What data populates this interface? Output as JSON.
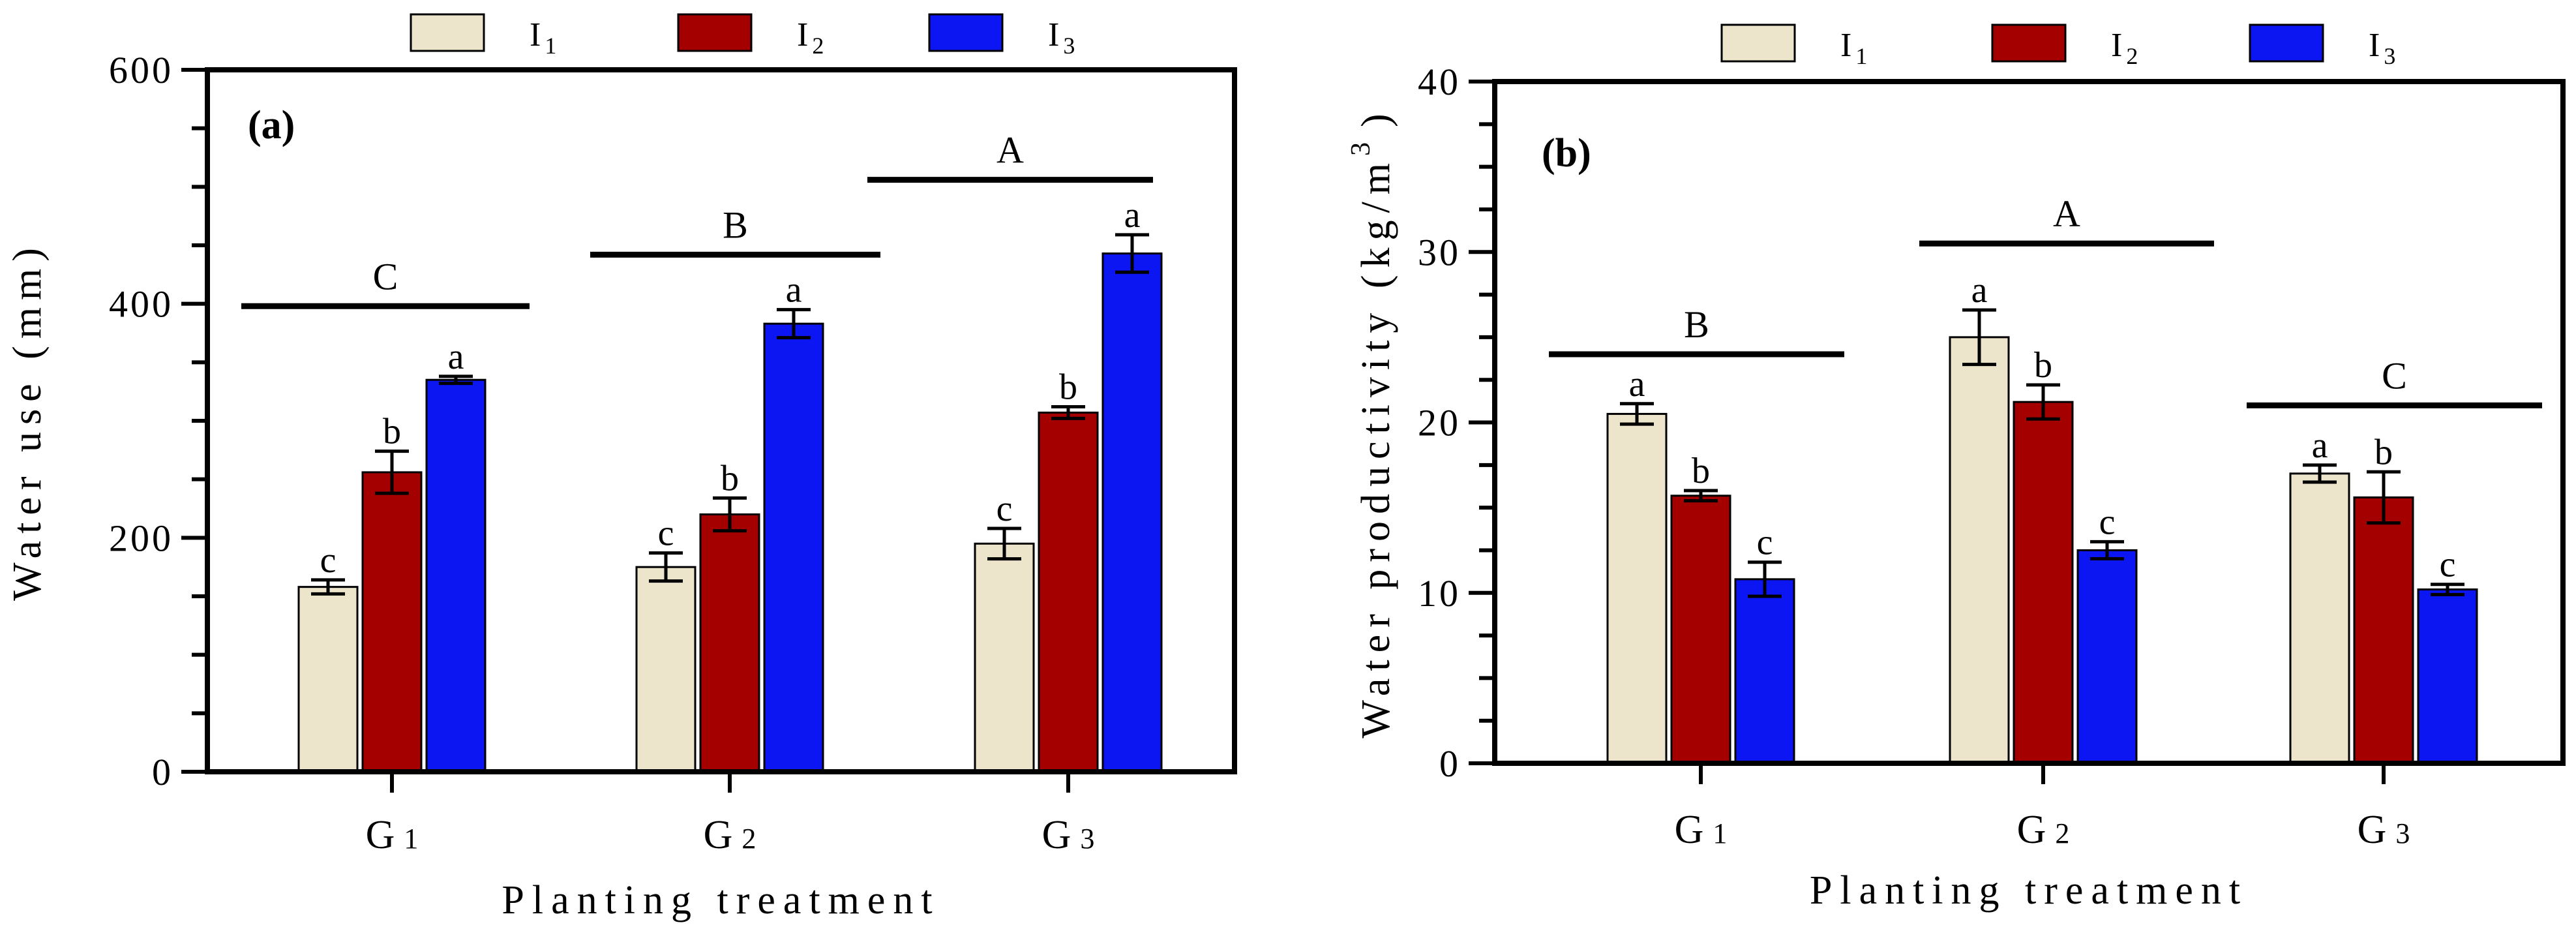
{
  "chart_data": [
    {
      "type": "bar",
      "panel_label": "(a)",
      "xlabel": "Planting treatment",
      "ylabel": "Water use (mm)",
      "ylim": [
        0,
        600
      ],
      "yticks": [
        "0",
        "200",
        "400",
        "600"
      ],
      "categories": [
        {
          "letter": "G",
          "sub": "1"
        },
        {
          "letter": "G",
          "sub": "2"
        },
        {
          "letter": "G",
          "sub": "3"
        }
      ],
      "legend": [
        {
          "letter": "I",
          "sub": "1",
          "color": "#ece5cc"
        },
        {
          "letter": "I",
          "sub": "2",
          "color": "#a50000"
        },
        {
          "letter": "I",
          "sub": "3",
          "color": "#0b16f2"
        }
      ],
      "series": [
        {
          "name": "I1",
          "color": "#ece5cc",
          "values": [
            158,
            175,
            195
          ],
          "errors": [
            6,
            12,
            13
          ],
          "labels": [
            "c",
            "c",
            "c"
          ]
        },
        {
          "name": "I2",
          "color": "#a50000",
          "values": [
            256,
            220,
            307
          ],
          "errors": [
            18,
            14,
            5
          ],
          "labels": [
            "b",
            "b",
            "b"
          ]
        },
        {
          "name": "I3",
          "color": "#0b16f2",
          "values": [
            335,
            383,
            443
          ],
          "errors": [
            3,
            12,
            16
          ],
          "labels": [
            "a",
            "a",
            "a"
          ]
        }
      ],
      "group_lines": [
        {
          "label": "C",
          "value": 398
        },
        {
          "label": "B",
          "value": 442
        },
        {
          "label": "A",
          "value": 506
        }
      ]
    },
    {
      "type": "bar",
      "panel_label": "(b)",
      "xlabel": "Planting treatment",
      "ylabel": "Water productivity (kg/m",
      "ylabel_sup": "3",
      "ylabel_close": ")",
      "ylim": [
        0,
        40
      ],
      "yticks": [
        "0",
        "10",
        "20",
        "30",
        "40"
      ],
      "categories": [
        {
          "letter": "G",
          "sub": "1"
        },
        {
          "letter": "G",
          "sub": "2"
        },
        {
          "letter": "G",
          "sub": "3"
        }
      ],
      "legend": [
        {
          "letter": "I",
          "sub": "1",
          "color": "#ece5cc"
        },
        {
          "letter": "I",
          "sub": "2",
          "color": "#a50000"
        },
        {
          "letter": "I",
          "sub": "3",
          "color": "#0b16f2"
        }
      ],
      "series": [
        {
          "name": "I1",
          "color": "#ece5cc",
          "values": [
            20.5,
            25.0,
            17.0
          ],
          "errors": [
            0.6,
            1.6,
            0.5
          ],
          "labels": [
            "a",
            "a",
            "a"
          ]
        },
        {
          "name": "I2",
          "color": "#a50000",
          "values": [
            15.7,
            21.2,
            15.6
          ],
          "errors": [
            0.3,
            1.0,
            1.5
          ],
          "labels": [
            "b",
            "b",
            "b"
          ]
        },
        {
          "name": "I3",
          "color": "#0b16f2",
          "values": [
            10.8,
            12.5,
            10.2
          ],
          "errors": [
            1.0,
            0.5,
            0.3
          ],
          "labels": [
            "c",
            "c",
            "c"
          ]
        }
      ],
      "group_lines": [
        {
          "label": "B",
          "value": 24.0
        },
        {
          "label": "A",
          "value": 30.5
        },
        {
          "label": "C",
          "value": 21.0
        }
      ]
    }
  ]
}
